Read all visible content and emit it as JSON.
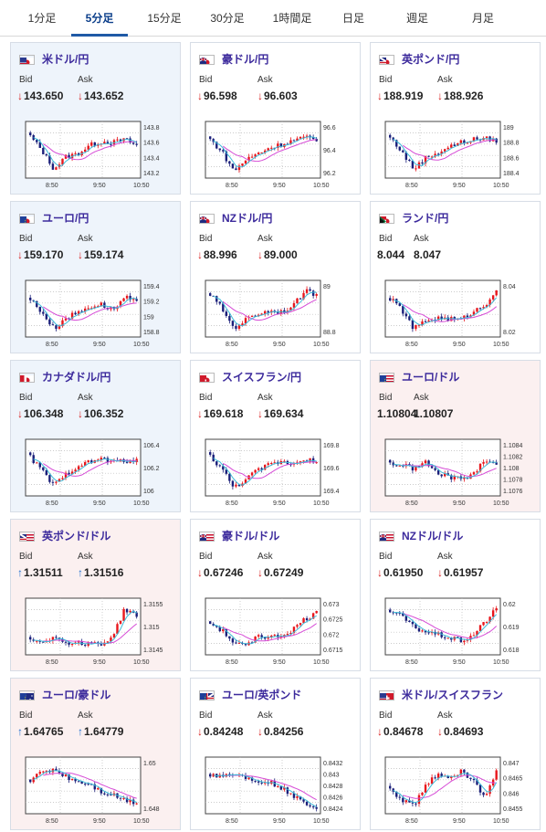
{
  "tabs": [
    {
      "label": "1分足",
      "active": false
    },
    {
      "label": "5分足",
      "active": true
    },
    {
      "label": "15分足",
      "active": false
    },
    {
      "label": "30分足",
      "active": false
    },
    {
      "label": "1時間足",
      "active": false
    },
    {
      "label": "日足",
      "active": false
    },
    {
      "label": "週足",
      "active": false
    },
    {
      "label": "月足",
      "active": false
    }
  ],
  "bid_label": "Bid",
  "ask_label": "Ask",
  "x_ticks": [
    "8:50",
    "9:50",
    "10:50"
  ],
  "colors": {
    "up": "#e8161c",
    "down": "#1b1f7a",
    "ma_short": "#3dbbd8",
    "ma_long": "#d64bd6",
    "accent": "#1f5aa6"
  },
  "cards": [
    {
      "name": "米ドル/円",
      "flag": "us-jp",
      "bg": "blue",
      "bid": "143.650",
      "ask": "143.652",
      "dir": "down",
      "y_ticks": [
        "143.8",
        "143.6",
        "143.4",
        "143.2"
      ],
      "ylim": [
        143.15,
        143.85
      ],
      "series": [
        0.78,
        0.5,
        0.14,
        0.38,
        0.44,
        0.6,
        0.68,
        0.66,
        0.72,
        0.6
      ]
    },
    {
      "name": "豪ドル/円",
      "flag": "au-jp",
      "bg": "white",
      "bid": "96.598",
      "ask": "96.603",
      "dir": "down",
      "y_ticks": [
        "96.6",
        "96.4",
        "96.2"
      ],
      "ylim": [
        96.15,
        96.75
      ],
      "series": [
        0.72,
        0.48,
        0.1,
        0.32,
        0.44,
        0.56,
        0.62,
        0.7,
        0.76,
        0.7
      ]
    },
    {
      "name": "英ポンド/円",
      "flag": "gb-jp",
      "bg": "white",
      "bid": "188.919",
      "ask": "188.926",
      "dir": "down",
      "y_ticks": [
        "189",
        "188.8",
        "188.6",
        "188.4"
      ],
      "ylim": [
        188.3,
        189.05
      ],
      "series": [
        0.76,
        0.48,
        0.14,
        0.36,
        0.46,
        0.58,
        0.66,
        0.72,
        0.74,
        0.7
      ]
    },
    {
      "name": "ユーロ/円",
      "flag": "eu-jp",
      "bg": "blue",
      "bid": "159.170",
      "ask": "159.174",
      "dir": "down",
      "y_ticks": [
        "159.4",
        "159.2",
        "159",
        "158.8"
      ],
      "ylim": [
        158.7,
        159.45
      ],
      "series": [
        0.7,
        0.45,
        0.12,
        0.34,
        0.44,
        0.56,
        0.6,
        0.5,
        0.74,
        0.64
      ]
    },
    {
      "name": "NZドル/円",
      "flag": "nz-jp",
      "bg": "white",
      "bid": "88.996",
      "ask": "89.000",
      "dir": "down",
      "y_ticks": [
        "89",
        "88.8"
      ],
      "ylim": [
        88.55,
        89.1
      ],
      "series": [
        0.8,
        0.52,
        0.14,
        0.3,
        0.42,
        0.48,
        0.46,
        0.56,
        0.86,
        0.8
      ]
    },
    {
      "name": "ランド/円",
      "flag": "za-jp",
      "bg": "white",
      "bid": "8.044",
      "ask": "8.047",
      "dir": "none",
      "y_ticks": [
        "8.04",
        "8.02"
      ],
      "ylim": [
        8.005,
        8.055
      ],
      "series": [
        0.72,
        0.5,
        0.12,
        0.28,
        0.34,
        0.32,
        0.3,
        0.46,
        0.58,
        0.9
      ]
    },
    {
      "name": "カナダドル/円",
      "flag": "ca-jp",
      "bg": "blue",
      "bid": "106.348",
      "ask": "106.352",
      "dir": "down",
      "y_ticks": [
        "106.4",
        "106.2",
        "106"
      ],
      "ylim": [
        105.95,
        106.5
      ],
      "series": [
        0.72,
        0.46,
        0.16,
        0.38,
        0.56,
        0.62,
        0.7,
        0.62,
        0.66,
        0.64
      ]
    },
    {
      "name": "スイスフラン/円",
      "flag": "ch-jp",
      "bg": "white",
      "bid": "169.618",
      "ask": "169.634",
      "dir": "down",
      "y_ticks": [
        "169.8",
        "169.6",
        "169.4"
      ],
      "ylim": [
        169.3,
        169.9
      ],
      "series": [
        0.74,
        0.5,
        0.12,
        0.3,
        0.46,
        0.58,
        0.64,
        0.6,
        0.7,
        0.6
      ]
    },
    {
      "name": "ユーロ/ドル",
      "flag": "eu-us",
      "bg": "pink",
      "bid": "1.10804",
      "ask": "1.10807",
      "dir": "none",
      "y_ticks": [
        "1.1084",
        "1.1082",
        "1.108",
        "1.1078",
        "1.1076"
      ],
      "ylim": [
        1.1075,
        1.1086
      ],
      "series": [
        0.6,
        0.56,
        0.5,
        0.62,
        0.4,
        0.34,
        0.3,
        0.36,
        0.7,
        0.58
      ]
    },
    {
      "name": "英ポンド/ドル",
      "flag": "gb-us",
      "bg": "pink",
      "bid": "1.31511",
      "ask": "1.31516",
      "dir": "up",
      "y_ticks": [
        "1.3155",
        "1.315",
        "1.3145"
      ],
      "ylim": [
        1.3142,
        1.3158
      ],
      "series": [
        0.26,
        0.24,
        0.3,
        0.22,
        0.18,
        0.2,
        0.16,
        0.34,
        0.86,
        0.74
      ]
    },
    {
      "name": "豪ドル/ドル",
      "flag": "au-us",
      "bg": "white",
      "bid": "0.67246",
      "ask": "0.67249",
      "dir": "down",
      "y_ticks": [
        "0.673",
        "0.6725",
        "0.672",
        "0.6715"
      ],
      "ylim": [
        0.67135,
        0.67315
      ],
      "series": [
        0.58,
        0.44,
        0.2,
        0.12,
        0.36,
        0.3,
        0.34,
        0.46,
        0.66,
        0.78
      ]
    },
    {
      "name": "NZドル/ドル",
      "flag": "nz-us",
      "bg": "white",
      "bid": "0.61950",
      "ask": "0.61957",
      "dir": "down",
      "y_ticks": [
        "0.62",
        "0.619",
        "0.618"
      ],
      "ylim": [
        0.6176,
        0.6203
      ],
      "series": [
        0.82,
        0.72,
        0.5,
        0.42,
        0.36,
        0.3,
        0.24,
        0.34,
        0.6,
        0.86
      ]
    },
    {
      "name": "ユーロ/豪ドル",
      "flag": "eu-au",
      "bg": "pink",
      "bid": "1.64765",
      "ask": "1.64779",
      "dir": "up",
      "y_ticks": [
        "1.65",
        "1.648"
      ],
      "ylim": [
        1.6455,
        1.6508
      ],
      "series": [
        0.62,
        0.78,
        0.84,
        0.7,
        0.6,
        0.56,
        0.4,
        0.34,
        0.24,
        0.18
      ]
    },
    {
      "name": "ユーロ/英ポンド",
      "flag": "eu-gb",
      "bg": "white",
      "bid": "0.84248",
      "ask": "0.84256",
      "dir": "down",
      "y_ticks": [
        "0.8432",
        "0.843",
        "0.8428",
        "0.8426",
        "0.8424"
      ],
      "ylim": [
        0.84235,
        0.84325
      ],
      "series": [
        0.74,
        0.7,
        0.76,
        0.66,
        0.62,
        0.58,
        0.48,
        0.3,
        0.18,
        0.1
      ]
    },
    {
      "name": "米ドル/スイスフラン",
      "flag": "us-ch",
      "bg": "white",
      "bid": "0.84678",
      "ask": "0.84693",
      "dir": "down",
      "y_ticks": [
        "0.847",
        "0.8465",
        "0.846",
        "0.8455"
      ],
      "ylim": [
        0.8453,
        0.8472
      ],
      "series": [
        0.42,
        0.24,
        0.12,
        0.5,
        0.74,
        0.7,
        0.78,
        0.62,
        0.3,
        0.78
      ]
    }
  ]
}
